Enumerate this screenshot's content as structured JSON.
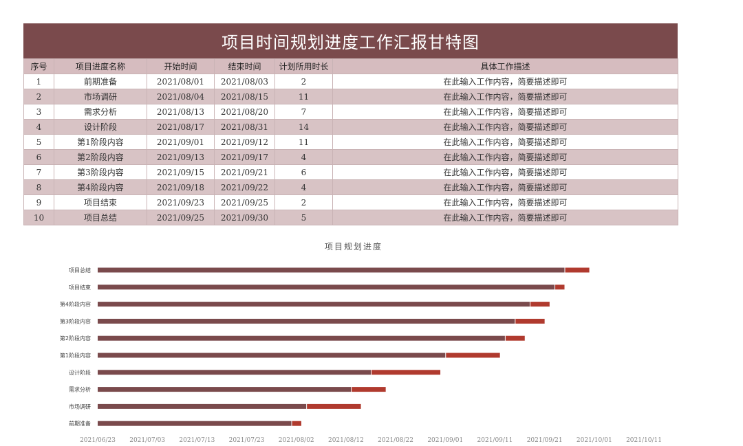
{
  "title": "项目时间规划进度工作汇报甘特图",
  "table": {
    "headers": [
      "序号",
      "项目进度名称",
      "开始时间",
      "结束时间",
      "计划所用时长",
      "具体工作描述"
    ],
    "rows": [
      [
        "1",
        "前期准备",
        "2021/08/01",
        "2021/08/03",
        "2",
        "在此输入工作内容，简要描述即可"
      ],
      [
        "2",
        "市场调研",
        "2021/08/04",
        "2021/08/15",
        "11",
        "在此输入工作内容，简要描述即可"
      ],
      [
        "3",
        "需求分析",
        "2021/08/13",
        "2021/08/20",
        "7",
        "在此输入工作内容，简要描述即可"
      ],
      [
        "4",
        "设计阶段",
        "2021/08/17",
        "2021/08/31",
        "14",
        "在此输入工作内容，简要描述即可"
      ],
      [
        "5",
        "第1阶段内容",
        "2021/09/01",
        "2021/09/12",
        "11",
        "在此输入工作内容，简要描述即可"
      ],
      [
        "6",
        "第2阶段内容",
        "2021/09/13",
        "2021/09/17",
        "4",
        "在此输入工作内容，简要描述即可"
      ],
      [
        "7",
        "第3阶段内容",
        "2021/09/15",
        "2021/09/21",
        "6",
        "在此输入工作内容，简要描述即可"
      ],
      [
        "8",
        "第4阶段内容",
        "2021/09/18",
        "2021/09/22",
        "4",
        "在此输入工作内容，简要描述即可"
      ],
      [
        "9",
        "项目结束",
        "2021/09/23",
        "2021/09/25",
        "2",
        "在此输入工作内容，简要描述即可"
      ],
      [
        "10",
        "项目总结",
        "2021/09/25",
        "2021/09/30",
        "5",
        "在此输入工作内容，简要描述即可"
      ]
    ]
  },
  "chart_data": {
    "type": "bar",
    "orientation": "horizontal",
    "stacked": true,
    "title": "项目规划进度",
    "categories": [
      "项目总结",
      "项目结束",
      "第4阶段内容",
      "第3阶段内容",
      "第2阶段内容",
      "第1阶段内容",
      "设计阶段",
      "需求分析",
      "市场调研",
      "前期准备"
    ],
    "start_dates": [
      "2021/09/25",
      "2021/09/23",
      "2021/09/18",
      "2021/09/15",
      "2021/09/13",
      "2021/09/01",
      "2021/08/17",
      "2021/08/13",
      "2021/08/04",
      "2021/08/01"
    ],
    "series": [
      {
        "name": "开始时间",
        "color": "#7a4a4c",
        "values": [
          94,
          92,
          87,
          84,
          82,
          70,
          55,
          51,
          42,
          39
        ]
      },
      {
        "name": "计划所用时长",
        "color": "#b03a2e",
        "values": [
          5,
          2,
          4,
          6,
          4,
          11,
          14,
          7,
          11,
          2
        ]
      }
    ],
    "x_axis": {
      "origin": "2021/06/23",
      "unit": "days",
      "range": [
        0,
        110
      ],
      "step": 10,
      "tick_labels": [
        "2021/06/23",
        "2021/07/03",
        "2021/07/13",
        "2021/07/23",
        "2021/08/02",
        "2021/08/12",
        "2021/08/22",
        "2021/09/01",
        "2021/09/11",
        "2021/09/21",
        "2021/10/01",
        "2021/10/11"
      ]
    },
    "legend": "none",
    "grid": false
  },
  "colors": {
    "header_bg": "#7a4a4c",
    "column_header_bg": "#d6bcbf",
    "stripe_bg": "#d8c3c5",
    "bar_offset": "#7a4a4c",
    "bar_duration": "#b03a2e"
  }
}
